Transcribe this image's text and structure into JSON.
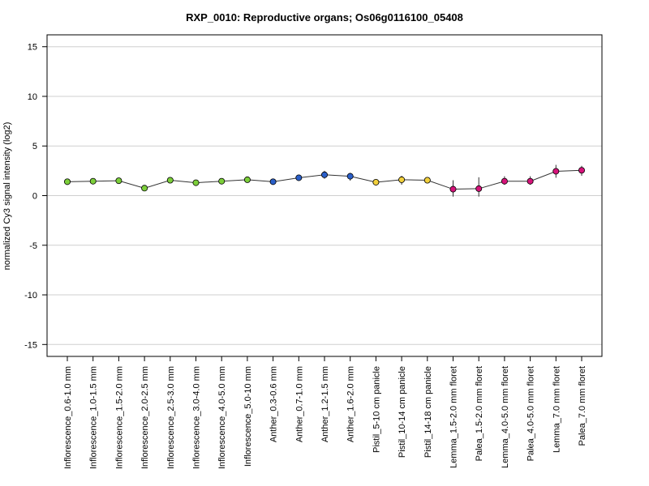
{
  "chart_data": {
    "type": "line",
    "title": "RXP_0010: Reproductive organs; Os06g0116100_05408",
    "xlabel": "",
    "ylabel": "normalized Cy3 signal intensity (log2)",
    "ylim": [
      -16.2,
      16.2
    ],
    "yticks": [
      -15,
      -10,
      -5,
      0,
      5,
      10,
      15
    ],
    "grid": true,
    "legend": "none",
    "categories": [
      "Inflorescence_0.6-1.0 mm",
      "Inflorescence_1.0-1.5 mm",
      "Inflorescence_1.5-2.0 mm",
      "Inflorescence_2.0-2.5 mm",
      "Inflorescence_2.5-3.0 mm",
      "Inflorescence_3.0-4.0 mm",
      "Inflorescence_4.0-5.0 mm",
      "Inflorescence_5.0-10 mm",
      "Anther_0.3-0.6 mm",
      "Anther_0.7-1.0 mm",
      "Anther_1.2-1.5 mm",
      "Anther_1.6-2.0 mm",
      "Pistil_5-10 cm panicle",
      "Pistil_10-14 cm panicle",
      "Pistil_14-18 cm panicle",
      "Lemma_1.5-2.0 mm floret",
      "Palea_1.5-2.0 mm floret",
      "Lemma_4.0-5.0 mm floret",
      "Palea_4.0-5.0 mm floret",
      "Lemma_7.0 mm floret",
      "Palea_7.0 mm floret"
    ],
    "values": [
      1.4,
      1.45,
      1.5,
      0.75,
      1.55,
      1.3,
      1.45,
      1.6,
      1.4,
      1.8,
      2.1,
      1.95,
      1.35,
      1.6,
      1.55,
      0.65,
      0.7,
      1.45,
      1.45,
      2.45,
      2.55
    ],
    "error_low": [
      1.3,
      1.35,
      1.2,
      0.65,
      1.35,
      1.1,
      1.3,
      1.45,
      1.25,
      1.6,
      1.7,
      1.5,
      1.2,
      1.1,
      1.25,
      -0.1,
      -0.1,
      1.1,
      1.1,
      1.8,
      2.0
    ],
    "error_high": [
      1.55,
      1.6,
      1.75,
      0.9,
      1.75,
      1.5,
      1.65,
      1.8,
      1.55,
      2.0,
      2.5,
      2.3,
      1.5,
      2.0,
      1.85,
      1.55,
      1.85,
      1.95,
      1.95,
      3.1,
      3.0
    ],
    "point_colors": [
      "#7ccf3a",
      "#7ccf3a",
      "#7ccf3a",
      "#7ccf3a",
      "#7ccf3a",
      "#7ccf3a",
      "#7ccf3a",
      "#7ccf3a",
      "#2a5fc9",
      "#2a5fc9",
      "#2a5fc9",
      "#2a5fc9",
      "#f2d03c",
      "#f2d03c",
      "#f2d03c",
      "#d6137a",
      "#d6137a",
      "#d6137a",
      "#d6137a",
      "#d6137a",
      "#d6137a"
    ],
    "line_color": "#333333",
    "grid_color": "#cfcfcf"
  }
}
